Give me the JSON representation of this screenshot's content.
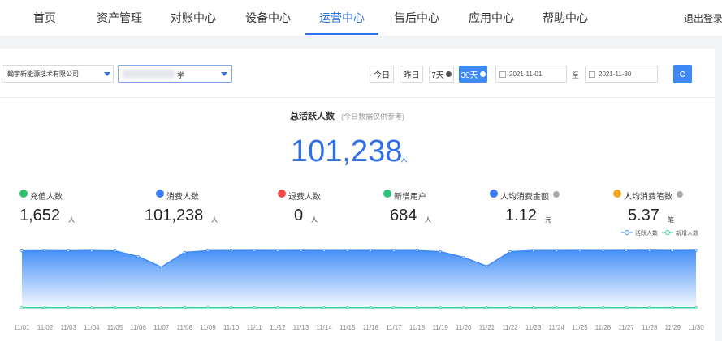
{
  "nav": {
    "items": [
      {
        "label": "首页"
      },
      {
        "label": "资产管理"
      },
      {
        "label": "对账中心"
      },
      {
        "label": "设备中心"
      },
      {
        "label": "运营中心",
        "active": true
      },
      {
        "label": "售后中心"
      },
      {
        "label": "应用中心"
      },
      {
        "label": "帮助中心"
      }
    ],
    "logout": "退出登录"
  },
  "filters": {
    "company": "翰宇新能源技术有限公司",
    "site": "学",
    "ranges": [
      {
        "label": "今日"
      },
      {
        "label": "昨日"
      },
      {
        "label": "7天",
        "info": true
      },
      {
        "label": "30天",
        "info": true,
        "active": true
      }
    ],
    "start": "2021-11-01",
    "sep": "至",
    "end": "2021-11-30"
  },
  "summary": {
    "title": "总活跃人数",
    "note": "(今日数据仅供参考)",
    "value": "101,238",
    "unit": "人"
  },
  "stats": [
    {
      "label": "充值人数",
      "value": "1,652",
      "unit": "人",
      "color": "#2fc26a"
    },
    {
      "label": "消费人数",
      "value": "101,238",
      "unit": "人",
      "color": "#3b7cf5"
    },
    {
      "label": "退费人数",
      "value": "0",
      "unit": "人",
      "color": "#f04848"
    },
    {
      "label": "新增用户",
      "value": "684",
      "unit": "人",
      "color": "#2ec47a"
    },
    {
      "label": "人均消费金额",
      "value": "1.12",
      "unit": "元",
      "color": "#3b7cf5",
      "help": true
    },
    {
      "label": "人均消费笔数",
      "value": "5.37",
      "unit": "笔",
      "color": "#f5a623",
      "help": true
    }
  ],
  "chart_data": {
    "type": "area-line",
    "x": [
      "11/01",
      "11/02",
      "11/03",
      "11/04",
      "11/05",
      "11/06",
      "11/07",
      "11/08",
      "11/09",
      "11/10",
      "11/11",
      "11/12",
      "11/13",
      "11/14",
      "11/15",
      "11/16",
      "11/17",
      "11/18",
      "11/19",
      "11/20",
      "11/21",
      "11/22",
      "11/23",
      "11/24",
      "11/25",
      "11/26",
      "11/27",
      "11/28",
      "11/29",
      "11/30"
    ],
    "series": [
      {
        "name": "活跃人数",
        "color": "#3d8af7",
        "values": [
          7000,
          7020,
          7010,
          7030,
          7000,
          6300,
          5000,
          6800,
          7020,
          7040,
          7050,
          7040,
          7050,
          7030,
          7040,
          7050,
          7030,
          7040,
          6900,
          6200,
          5100,
          6900,
          7030,
          7040,
          7050,
          7040,
          7050,
          7060,
          7040,
          7060
        ]
      },
      {
        "name": "新增人数",
        "color": "#36cfa0",
        "values": [
          22,
          20,
          24,
          23,
          25,
          21,
          18,
          24,
          22,
          23,
          25,
          24,
          22,
          23,
          24,
          22,
          23,
          25,
          22,
          20,
          19,
          23,
          24,
          22,
          23,
          25,
          24,
          22,
          23,
          26
        ]
      }
    ],
    "legend": "top-right"
  }
}
